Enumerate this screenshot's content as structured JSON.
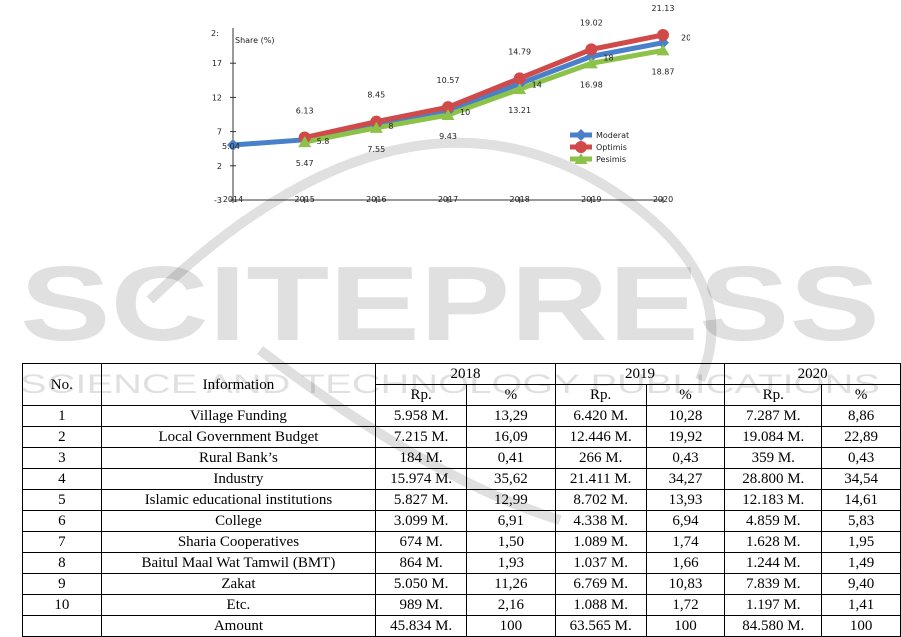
{
  "chart_data": {
    "type": "line",
    "ylabel": "Share (%)",
    "y_top_tick": "2:",
    "y_ticks": [
      "17",
      "12",
      "7",
      "2",
      "-3"
    ],
    "x": [
      "2014",
      "2015",
      "2016",
      "2017",
      "2018",
      "2019",
      "2020"
    ],
    "ylim": [
      -3,
      22
    ],
    "series": [
      {
        "name": "Moderat",
        "color": "#4a7fc9",
        "values": [
          5.04,
          5.8,
          8,
          10,
          14,
          18,
          20
        ]
      },
      {
        "name": "Optimis",
        "color": "#d04a4a",
        "values": [
          null,
          6.13,
          8.45,
          10.57,
          14.79,
          19.02,
          21.13
        ]
      },
      {
        "name": "Pesimis",
        "color": "#8dc24a",
        "values": [
          null,
          5.47,
          7.55,
          9.43,
          13.21,
          16.98,
          18.87
        ]
      }
    ],
    "point_labels": {
      "Moderat": [
        "5.04",
        "5.8",
        "8",
        "10",
        "14",
        "18",
        "20"
      ],
      "Optimis": [
        "",
        "6.13",
        "8.45",
        "10.57",
        "14.79",
        "19.02",
        "21.13"
      ],
      "Pesimis": [
        "",
        "5.47",
        "7.55",
        "9.43",
        "13.21",
        "16.98",
        "18.87"
      ]
    },
    "legend": "bottom-right"
  },
  "watermark": {
    "main": "SCITEPRESS",
    "sub": "SCIENCE AND TECHNOLOGY PUBLICATIONS"
  },
  "table": {
    "headers": {
      "no": "No.",
      "info": "Information",
      "years": [
        "2018",
        "2019",
        "2020"
      ],
      "rp": "Rp.",
      "pct": "%"
    },
    "rows": [
      {
        "no": "1",
        "info": "Village Funding",
        "v2018": "5.958 M.",
        "p2018": "13,29",
        "v2019": "6.420 M.",
        "p2019": "10,28",
        "v2020": "7.287 M.",
        "p2020": "8,86"
      },
      {
        "no": "2",
        "info": "Local Government Budget",
        "v2018": "7.215 M.",
        "p2018": "16,09",
        "v2019": "12.446 M.",
        "p2019": "19,92",
        "v2020": "19.084 M.",
        "p2020": "22,89"
      },
      {
        "no": "3",
        "info": "Rural Bank’s",
        "v2018": "184 M.",
        "p2018": "0,41",
        "v2019": "266 M.",
        "p2019": "0,43",
        "v2020": "359 M.",
        "p2020": "0,43"
      },
      {
        "no": "4",
        "info": "Industry",
        "v2018": "15.974 M.",
        "p2018": "35,62",
        "v2019": "21.411 M.",
        "p2019": "34,27",
        "v2020": "28.800 M.",
        "p2020": "34,54"
      },
      {
        "no": "5",
        "info": "Islamic educational institutions",
        "v2018": "5.827 M.",
        "p2018": "12,99",
        "v2019": "8.702 M.",
        "p2019": "13,93",
        "v2020": "12.183 M.",
        "p2020": "14,61"
      },
      {
        "no": "6",
        "info": "College",
        "v2018": "3.099 M.",
        "p2018": "6,91",
        "v2019": "4.338 M.",
        "p2019": "6,94",
        "v2020": "4.859 M.",
        "p2020": "5,83"
      },
      {
        "no": "7",
        "info": "Sharia Cooperatives",
        "v2018": "674 M.",
        "p2018": "1,50",
        "v2019": "1.089 M.",
        "p2019": "1,74",
        "v2020": "1.628 M.",
        "p2020": "1,95"
      },
      {
        "no": "8",
        "info": "Baitul Maal Wat Tamwil (BMT)",
        "v2018": "864 M.",
        "p2018": "1,93",
        "v2019": "1.037 M.",
        "p2019": "1,66",
        "v2020": "1.244 M.",
        "p2020": "1,49"
      },
      {
        "no": "9",
        "info": "Zakat",
        "v2018": "5.050 M.",
        "p2018": "11,26",
        "v2019": "6.769 M.",
        "p2019": "10,83",
        "v2020": "7.839 M.",
        "p2020": "9,40"
      },
      {
        "no": "10",
        "info": "Etc.",
        "v2018": "989 M.",
        "p2018": "2,16",
        "v2019": "1.088 M.",
        "p2019": "1,72",
        "v2020": "1.197 M.",
        "p2020": "1,41"
      }
    ],
    "total": {
      "label": "Amount",
      "v2018": "45.834 M.",
      "p2018": "100",
      "v2019": "63.565 M.",
      "p2019": "100",
      "v2020": "84.580 M.",
      "p2020": "100"
    }
  }
}
